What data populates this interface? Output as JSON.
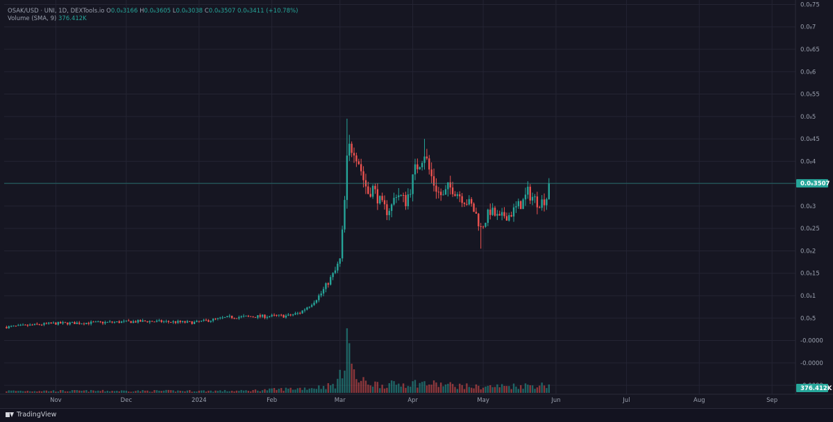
{
  "legend": {
    "symbol": "OSAK/USD · UNI, 1D, DEXTools.io",
    "o_label": "O",
    "o_value": "0.0₈3166",
    "h_label": "H",
    "h_value": "0.0₈3605",
    "l_label": "L",
    "l_value": "0.0₈3038",
    "c_label": "C",
    "c_value": "0.0₈3507",
    "change": "0.0₉3411 (+10.78%)",
    "volume_label": "Volume (SMA, 9)",
    "volume_value": "376.412K"
  },
  "price_axis": {
    "ticks": [
      {
        "value": 0.75,
        "label": "0.0₈75"
      },
      {
        "value": 0.7,
        "label": "0.0₈7"
      },
      {
        "value": 0.65,
        "label": "0.0₈65"
      },
      {
        "value": 0.6,
        "label": "0.0₈6"
      },
      {
        "value": 0.55,
        "label": "0.0₈55"
      },
      {
        "value": 0.5,
        "label": "0.0₈5"
      },
      {
        "value": 0.45,
        "label": "0.0₈45"
      },
      {
        "value": 0.4,
        "label": "0.0₈4"
      },
      {
        "value": 0.35,
        "label": "0.0₈35"
      },
      {
        "value": 0.3,
        "label": "0.0₈3"
      },
      {
        "value": 0.25,
        "label": "0.0₈25"
      },
      {
        "value": 0.2,
        "label": "0.0₈2"
      },
      {
        "value": 0.15,
        "label": "0.0₈15"
      },
      {
        "value": 0.1,
        "label": "0.0₈1"
      },
      {
        "value": 0.05,
        "label": "0.0₉5"
      },
      {
        "value": 0.0,
        "label": "-0.0000"
      },
      {
        "value": -0.05,
        "label": "-0.0000"
      },
      {
        "value": -0.1,
        "label": "-0.0000"
      }
    ],
    "last_price_label": "0.0₈3507",
    "last_price_value": 0.3507,
    "last_volume_label": "376.412K"
  },
  "time_axis": {
    "labels": [
      {
        "day": 21,
        "label": "Nov"
      },
      {
        "day": 51,
        "label": "Dec"
      },
      {
        "day": 82,
        "label": "2024"
      },
      {
        "day": 113,
        "label": "Feb"
      },
      {
        "day": 142,
        "label": "Mar"
      },
      {
        "day": 173,
        "label": "Apr"
      },
      {
        "day": 203,
        "label": "May"
      },
      {
        "day": 234,
        "label": "Jun"
      },
      {
        "day": 264,
        "label": "Jul"
      },
      {
        "day": 295,
        "label": "Aug"
      },
      {
        "day": 326,
        "label": "Sep"
      }
    ]
  },
  "footer": {
    "brand": "TradingView"
  },
  "colors": {
    "up": "#26a69a",
    "down": "#ef5350",
    "grid": "#242433",
    "text": "#9aa0ae",
    "last_price_line": "#26a69a"
  },
  "chart_data": {
    "type": "candlestick",
    "x_unit": "days from 2023-10-11",
    "price_range": [
      -0.12,
      0.76
    ],
    "price_anchors": [
      [
        0,
        0.03
      ],
      [
        20,
        0.038
      ],
      [
        40,
        0.04
      ],
      [
        60,
        0.043
      ],
      [
        80,
        0.04
      ],
      [
        95,
        0.052
      ],
      [
        110,
        0.054
      ],
      [
        120,
        0.055
      ],
      [
        125,
        0.062
      ],
      [
        130,
        0.083
      ],
      [
        134,
        0.105
      ],
      [
        137,
        0.13
      ],
      [
        140,
        0.155
      ],
      [
        142,
        0.18
      ],
      [
        143,
        0.24
      ],
      [
        144,
        0.31
      ],
      [
        145,
        0.4
      ],
      [
        146,
        0.43
      ],
      [
        148,
        0.43
      ],
      [
        150,
        0.4
      ],
      [
        152,
        0.36
      ],
      [
        154,
        0.33
      ],
      [
        156,
        0.34
      ],
      [
        158,
        0.32
      ],
      [
        160,
        0.3
      ],
      [
        162,
        0.29
      ],
      [
        164,
        0.3
      ],
      [
        166,
        0.33
      ],
      [
        168,
        0.32
      ],
      [
        170,
        0.31
      ],
      [
        172,
        0.34
      ],
      [
        174,
        0.38
      ],
      [
        176,
        0.4
      ],
      [
        178,
        0.42
      ],
      [
        180,
        0.38
      ],
      [
        182,
        0.35
      ],
      [
        184,
        0.33
      ],
      [
        186,
        0.32
      ],
      [
        188,
        0.34
      ],
      [
        190,
        0.34
      ],
      [
        192,
        0.33
      ],
      [
        194,
        0.32
      ],
      [
        196,
        0.31
      ],
      [
        198,
        0.3
      ],
      [
        200,
        0.28
      ],
      [
        202,
        0.25
      ],
      [
        204,
        0.27
      ],
      [
        206,
        0.29
      ],
      [
        208,
        0.28
      ],
      [
        210,
        0.27
      ],
      [
        212,
        0.28
      ],
      [
        214,
        0.28
      ],
      [
        216,
        0.29
      ],
      [
        218,
        0.3
      ],
      [
        220,
        0.31
      ],
      [
        222,
        0.33
      ],
      [
        224,
        0.32
      ],
      [
        226,
        0.31
      ],
      [
        228,
        0.31
      ],
      [
        230,
        0.32
      ],
      [
        231,
        0.3507
      ]
    ],
    "peaks": [
      {
        "day": 145,
        "high": 0.495
      },
      {
        "day": 178,
        "high": 0.45
      },
      {
        "day": 202,
        "low": 0.205
      }
    ],
    "volume_anchors": [
      [
        0,
        0.02
      ],
      [
        100,
        0.02
      ],
      [
        130,
        0.05
      ],
      [
        140,
        0.08
      ],
      [
        143,
        0.2
      ],
      [
        145,
        0.62
      ],
      [
        146,
        0.45
      ],
      [
        148,
        0.18
      ],
      [
        150,
        0.12
      ],
      [
        160,
        0.08
      ],
      [
        175,
        0.1
      ],
      [
        200,
        0.06
      ],
      [
        231,
        0.08
      ]
    ],
    "volume_max": 1.0
  }
}
